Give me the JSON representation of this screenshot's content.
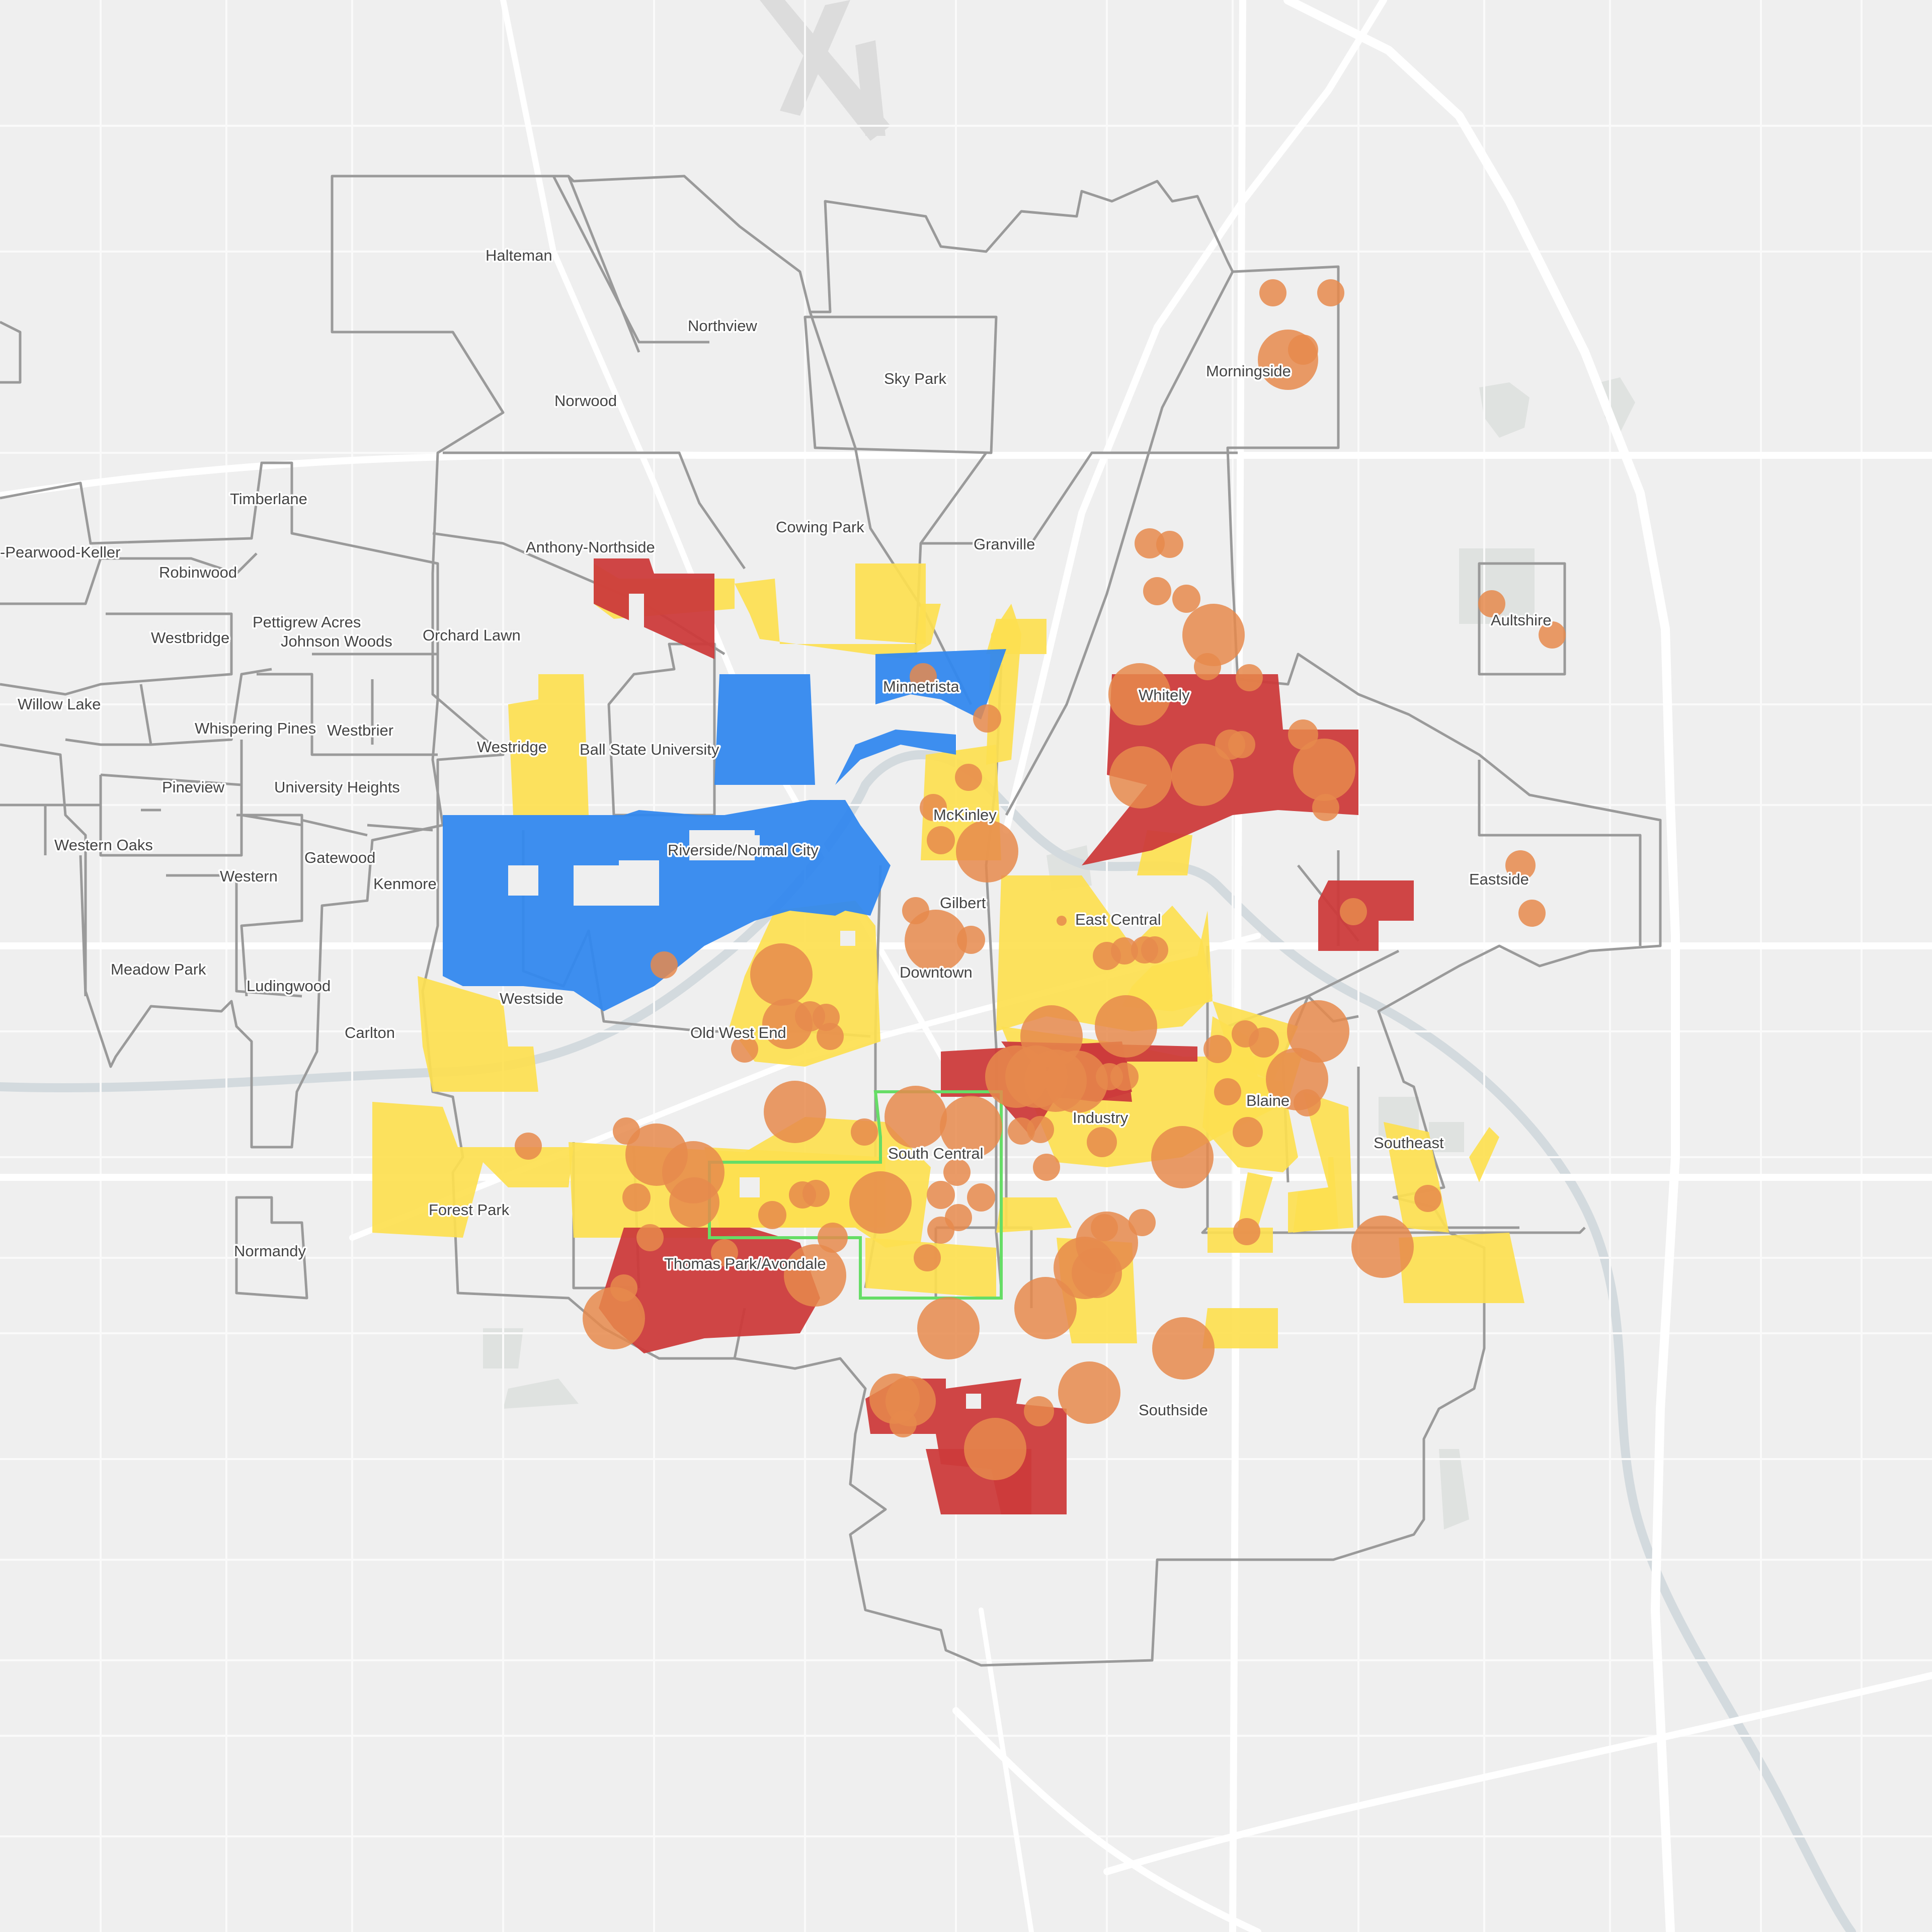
{
  "map": {
    "colors": {
      "background": "#efefef",
      "road": "#ffffff",
      "water": "#d5dbe0",
      "park": "#e3e7e3",
      "boundary": "#9a9a9a",
      "category_red": "#cc3b3b",
      "category_yellow": "#fde050",
      "category_blue": "#3388ee",
      "points": "#e6894c",
      "highlight_outline": "#66dd66"
    },
    "neighborhoods": [
      "Halteman",
      "Northview",
      "Sky Park",
      "Norwood",
      "Morningside",
      "Timberlane",
      "Cowing Park",
      "Granville",
      "Anthony-Northside",
      "-Pearwood-Keller",
      "Robinwood",
      "Pettigrew Acres",
      "Johnson Woods",
      "Westbridge",
      "Orchard Lawn",
      "Aultshire",
      "Minnetrista",
      "Willow Lake",
      "Whitely",
      "Whispering Pines",
      "Westbrier",
      "Westridge",
      "Ball State University",
      "Pineview",
      "University Heights",
      "McKinley",
      "Western Oaks",
      "Riverside/Normal City",
      "Gatewood",
      "Eastside",
      "Western",
      "Kenmore",
      "Gilbert",
      "East Central",
      "Meadow Park",
      "Downtown",
      "Ludingwood",
      "Westside",
      "Carlton",
      "Old West End",
      "Blaine",
      "Industry",
      "Southeast",
      "South Central",
      "Forest Park",
      "Normandy",
      "Thomas Park/Avondale",
      "Southside"
    ]
  }
}
